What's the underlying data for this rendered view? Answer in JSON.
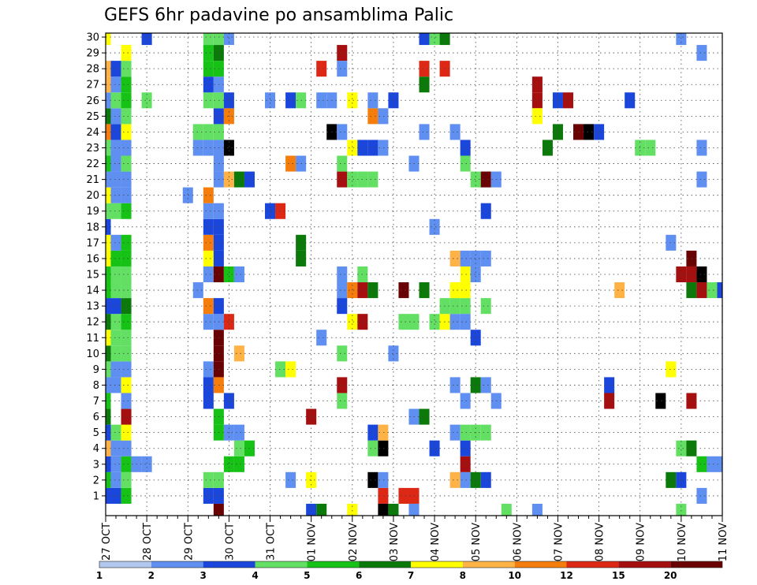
{
  "chart_data": {
    "type": "heatmap",
    "title": "GEFS 6hr padavine po ansamblima Palic",
    "xlabel": "",
    "ylabel": "",
    "y_ticks": [
      "1",
      "2",
      "3",
      "4",
      "5",
      "6",
      "7",
      "8",
      "9",
      "10",
      "11",
      "12",
      "13",
      "14",
      "15",
      "16",
      "17",
      "18",
      "19",
      "20",
      "21",
      "22",
      "23",
      "24",
      "25",
      "26",
      "27",
      "28",
      "29",
      "30"
    ],
    "ylim": [
      0,
      30
    ],
    "x_ticks": [
      "27 OCT",
      "28 OCT",
      "29 OCT",
      "30 OCT",
      "31 OCT",
      "01 NOV",
      "02 NOV",
      "03 NOV",
      "04 NOV",
      "05 NOV",
      "06 NOV",
      "07 NOV",
      "08 NOV",
      "09 NOV",
      "10 NOV",
      "11 NOV"
    ],
    "x_unit": "6-hour step from 27 OCT 00Z",
    "grid": true,
    "legend": "bottom colorbar",
    "colorbar": {
      "labels": [
        "1",
        "2",
        "3",
        "4",
        "5",
        "6",
        "7",
        "8",
        "10",
        "12",
        "15",
        "20"
      ],
      "colors": [
        "#b3c8ef",
        "#5f8ff0",
        "#1a46dc",
        "#63e063",
        "#16c216",
        "#0b7a0b",
        "#ffff00",
        "#ffb347",
        "#f47d0c",
        "#dc2814",
        "#a50f0f",
        "#690303"
      ]
    },
    "cells": [
      [
        0,
        1,
        2
      ],
      [
        0,
        2,
        4
      ],
      [
        0,
        3,
        2
      ],
      [
        0,
        4,
        7
      ],
      [
        0,
        5,
        2
      ],
      [
        0,
        6,
        5
      ],
      [
        0,
        7,
        4
      ],
      [
        0,
        8,
        1
      ],
      [
        0,
        9,
        3
      ],
      [
        0,
        10,
        5
      ],
      [
        0,
        11,
        6
      ],
      [
        0,
        12,
        5
      ],
      [
        0,
        13,
        2
      ],
      [
        0,
        14,
        4
      ],
      [
        0,
        15,
        4
      ],
      [
        0,
        16,
        6
      ],
      [
        0,
        17,
        6
      ],
      [
        0,
        18,
        2
      ],
      [
        0,
        19,
        3
      ],
      [
        0,
        20,
        6
      ],
      [
        0,
        21,
        1
      ],
      [
        0,
        22,
        4
      ],
      [
        0,
        23,
        3
      ],
      [
        0,
        24,
        8
      ],
      [
        0,
        25,
        5
      ],
      [
        0,
        26,
        1
      ],
      [
        0,
        27,
        7
      ],
      [
        0,
        28,
        7
      ],
      [
        0,
        30,
        6
      ],
      [
        1,
        1,
        2
      ],
      [
        1,
        2,
        1
      ],
      [
        1,
        3,
        1
      ],
      [
        1,
        4,
        1
      ],
      [
        1,
        5,
        3
      ],
      [
        1,
        8,
        1
      ],
      [
        1,
        9,
        1
      ],
      [
        1,
        10,
        3
      ],
      [
        1,
        11,
        3
      ],
      [
        1,
        12,
        3
      ],
      [
        1,
        13,
        2
      ],
      [
        1,
        14,
        3
      ],
      [
        1,
        15,
        3
      ],
      [
        1,
        16,
        4
      ],
      [
        1,
        17,
        1
      ],
      [
        1,
        19,
        3
      ],
      [
        1,
        20,
        1
      ],
      [
        1,
        21,
        1
      ],
      [
        1,
        22,
        1
      ],
      [
        1,
        23,
        1
      ],
      [
        1,
        24,
        2
      ],
      [
        1,
        25,
        1
      ],
      [
        1,
        26,
        3
      ],
      [
        1,
        27,
        1
      ],
      [
        1,
        28,
        2
      ],
      [
        2,
        1,
        4
      ],
      [
        2,
        2,
        3
      ],
      [
        2,
        3,
        4
      ],
      [
        2,
        4,
        1
      ],
      [
        2,
        5,
        6
      ],
      [
        2,
        6,
        10
      ],
      [
        2,
        7,
        1
      ],
      [
        2,
        8,
        6
      ],
      [
        2,
        9,
        1
      ],
      [
        2,
        10,
        3
      ],
      [
        2,
        11,
        3
      ],
      [
        2,
        12,
        4
      ],
      [
        2,
        13,
        5
      ],
      [
        2,
        14,
        3
      ],
      [
        2,
        15,
        3
      ],
      [
        2,
        16,
        4
      ],
      [
        2,
        17,
        4
      ],
      [
        2,
        19,
        4
      ],
      [
        2,
        20,
        1
      ],
      [
        2,
        21,
        1
      ],
      [
        2,
        22,
        3
      ],
      [
        2,
        23,
        1
      ],
      [
        2,
        24,
        6
      ],
      [
        2,
        25,
        3
      ],
      [
        2,
        26,
        4
      ],
      [
        2,
        27,
        4
      ],
      [
        2,
        28,
        3
      ],
      [
        2,
        29,
        6
      ],
      [
        3,
        3,
        1
      ],
      [
        4,
        3,
        1
      ],
      [
        4,
        26,
        3
      ],
      [
        4,
        30,
        2
      ],
      [
        8,
        20,
        1
      ],
      [
        9,
        24,
        3
      ],
      [
        9,
        23,
        1
      ],
      [
        9,
        14,
        1
      ],
      [
        10,
        1,
        2
      ],
      [
        10,
        2,
        3
      ],
      [
        10,
        9,
        1
      ],
      [
        10,
        8,
        2
      ],
      [
        10,
        7,
        2
      ],
      [
        10,
        12,
        1
      ],
      [
        10,
        13,
        8
      ],
      [
        10,
        15,
        1
      ],
      [
        10,
        16,
        6
      ],
      [
        10,
        17,
        8
      ],
      [
        10,
        18,
        2
      ],
      [
        10,
        19,
        1
      ],
      [
        10,
        20,
        8
      ],
      [
        10,
        23,
        1
      ],
      [
        10,
        24,
        3
      ],
      [
        10,
        26,
        3
      ],
      [
        10,
        27,
        2
      ],
      [
        10,
        30,
        3
      ],
      [
        10,
        29,
        4
      ],
      [
        10,
        28,
        4
      ],
      [
        11,
        0,
        11
      ],
      [
        11,
        1,
        2
      ],
      [
        11,
        2,
        3
      ],
      [
        11,
        5,
        4
      ],
      [
        11,
        6,
        4
      ],
      [
        11,
        8,
        8
      ],
      [
        11,
        9,
        11
      ],
      [
        11,
        10,
        11
      ],
      [
        11,
        11,
        11
      ],
      [
        11,
        12,
        1
      ],
      [
        11,
        13,
        2
      ],
      [
        11,
        15,
        11
      ],
      [
        11,
        16,
        2
      ],
      [
        11,
        17,
        2
      ],
      [
        11,
        18,
        2
      ],
      [
        11,
        19,
        1
      ],
      [
        11,
        21,
        1
      ],
      [
        11,
        22,
        1
      ],
      [
        11,
        23,
        1
      ],
      [
        11,
        24,
        3
      ],
      [
        11,
        25,
        2
      ],
      [
        11,
        26,
        3
      ],
      [
        11,
        27,
        1
      ],
      [
        11,
        28,
        4
      ],
      [
        11,
        29,
        5
      ],
      [
        11,
        30,
        3
      ],
      [
        12,
        3,
        4
      ],
      [
        12,
        5,
        1
      ],
      [
        12,
        7,
        2
      ],
      [
        12,
        12,
        9
      ],
      [
        12,
        15,
        4
      ],
      [
        12,
        21,
        7
      ],
      [
        12,
        23,
        12
      ],
      [
        12,
        25,
        8
      ],
      [
        12,
        26,
        2
      ],
      [
        12,
        30,
        1
      ],
      [
        13,
        3,
        4
      ],
      [
        13,
        4,
        3
      ],
      [
        13,
        5,
        1
      ],
      [
        13,
        10,
        7
      ],
      [
        13,
        15,
        1
      ],
      [
        13,
        21,
        5
      ],
      [
        14,
        4,
        4
      ],
      [
        14,
        21,
        2
      ],
      [
        16,
        19,
        2
      ],
      [
        16,
        26,
        1
      ],
      [
        17,
        9,
        3
      ],
      [
        17,
        19,
        9
      ],
      [
        18,
        2,
        1
      ],
      [
        18,
        9,
        6
      ],
      [
        18,
        22,
        8
      ],
      [
        18,
        26,
        2
      ],
      [
        19,
        16,
        5
      ],
      [
        19,
        17,
        5
      ],
      [
        19,
        22,
        1
      ],
      [
        19,
        26,
        3
      ],
      [
        20,
        2,
        6
      ],
      [
        20,
        6,
        10
      ],
      [
        20,
        0,
        2
      ],
      [
        21,
        0,
        5
      ],
      [
        21,
        11,
        1
      ],
      [
        21,
        26,
        1
      ],
      [
        21,
        28,
        9
      ],
      [
        22,
        24,
        12
      ],
      [
        22,
        26,
        1
      ],
      [
        23,
        8,
        10
      ],
      [
        23,
        7,
        3
      ],
      [
        23,
        10,
        3
      ],
      [
        23,
        14,
        1
      ],
      [
        23,
        15,
        1
      ],
      [
        23,
        13,
        2
      ],
      [
        23,
        24,
        1
      ],
      [
        23,
        21,
        10
      ],
      [
        23,
        29,
        10
      ],
      [
        23,
        22,
        3
      ],
      [
        23,
        28,
        1
      ],
      [
        24,
        0,
        6
      ],
      [
        24,
        12,
        6
      ],
      [
        24,
        14,
        8
      ],
      [
        24,
        23,
        6
      ],
      [
        24,
        21,
        3
      ],
      [
        24,
        26,
        6
      ],
      [
        25,
        12,
        10
      ],
      [
        25,
        14,
        10
      ],
      [
        25,
        15,
        3
      ],
      [
        25,
        21,
        3
      ],
      [
        25,
        23,
        2
      ],
      [
        26,
        2,
        12
      ],
      [
        26,
        4,
        3
      ],
      [
        26,
        5,
        2
      ],
      [
        26,
        14,
        5
      ],
      [
        26,
        21,
        3
      ],
      [
        26,
        23,
        2
      ],
      [
        26,
        25,
        8
      ],
      [
        26,
        26,
        1
      ],
      [
        27,
        1,
        9
      ],
      [
        27,
        2,
        1
      ],
      [
        27,
        4,
        12
      ],
      [
        27,
        5,
        7
      ],
      [
        27,
        23,
        1
      ],
      [
        27,
        25,
        1
      ],
      [
        27,
        0,
        12
      ],
      [
        28,
        0,
        5
      ],
      [
        28,
        10,
        1
      ],
      [
        28,
        26,
        2
      ],
      [
        29,
        14,
        11
      ],
      [
        29,
        1,
        9
      ],
      [
        29,
        12,
        3
      ],
      [
        30,
        6,
        1
      ],
      [
        30,
        12,
        3
      ],
      [
        30,
        1,
        9
      ],
      [
        30,
        0,
        1
      ],
      [
        30,
        22,
        1
      ],
      [
        31,
        6,
        5
      ],
      [
        31,
        14,
        5
      ],
      [
        31,
        27,
        5
      ],
      [
        31,
        28,
        9
      ],
      [
        31,
        24,
        1
      ],
      [
        31,
        30,
        2
      ],
      [
        32,
        4,
        2
      ],
      [
        32,
        12,
        3
      ],
      [
        32,
        18,
        1
      ],
      [
        32,
        30,
        3
      ],
      [
        33,
        12,
        6
      ],
      [
        33,
        13,
        3
      ],
      [
        33,
        28,
        9
      ],
      [
        33,
        30,
        5
      ],
      [
        34,
        2,
        7
      ],
      [
        34,
        5,
        1
      ],
      [
        34,
        8,
        1
      ],
      [
        34,
        12,
        1
      ],
      [
        34,
        13,
        3
      ],
      [
        34,
        14,
        6
      ],
      [
        34,
        16,
        7
      ],
      [
        34,
        24,
        1
      ],
      [
        35,
        2,
        1
      ],
      [
        35,
        3,
        10
      ],
      [
        35,
        4,
        2
      ],
      [
        35,
        5,
        3
      ],
      [
        35,
        7,
        1
      ],
      [
        35,
        13,
        3
      ],
      [
        35,
        14,
        6
      ],
      [
        35,
        15,
        6
      ],
      [
        35,
        16,
        1
      ],
      [
        35,
        22,
        3
      ],
      [
        35,
        23,
        2
      ],
      [
        35,
        12,
        1
      ],
      [
        36,
        2,
        5
      ],
      [
        36,
        5,
        3
      ],
      [
        36,
        8,
        5
      ],
      [
        36,
        11,
        2
      ],
      [
        36,
        15,
        1
      ],
      [
        36,
        21,
        3
      ],
      [
        36,
        16,
        1
      ],
      [
        37,
        2,
        2
      ],
      [
        37,
        5,
        3
      ],
      [
        37,
        8,
        1
      ],
      [
        37,
        13,
        3
      ],
      [
        37,
        19,
        2
      ],
      [
        37,
        16,
        1
      ],
      [
        37,
        21,
        11
      ],
      [
        38,
        21,
        1
      ],
      [
        38,
        7,
        1
      ],
      [
        39,
        0,
        3
      ],
      [
        42,
        0,
        1
      ],
      [
        42,
        26,
        10
      ],
      [
        42,
        27,
        10
      ],
      [
        42,
        25,
        6
      ],
      [
        43,
        23,
        5
      ],
      [
        44,
        24,
        5
      ],
      [
        44,
        26,
        2
      ],
      [
        45,
        26,
        10
      ],
      [
        46,
        24,
        11
      ],
      [
        47,
        24,
        12
      ],
      [
        48,
        24,
        2
      ],
      [
        49,
        7,
        10
      ],
      [
        49,
        8,
        2
      ],
      [
        50,
        14,
        7
      ],
      [
        51,
        26,
        2
      ],
      [
        52,
        23,
        3
      ],
      [
        53,
        23,
        3
      ],
      [
        54,
        7,
        12
      ],
      [
        55,
        2,
        5
      ],
      [
        55,
        9,
        6
      ],
      [
        55,
        17,
        1
      ],
      [
        56,
        0,
        3
      ],
      [
        56,
        2,
        2
      ],
      [
        56,
        4,
        3
      ],
      [
        56,
        15,
        10
      ],
      [
        56,
        30,
        1
      ],
      [
        57,
        4,
        5
      ],
      [
        57,
        14,
        5
      ],
      [
        57,
        15,
        10
      ],
      [
        57,
        16,
        11
      ],
      [
        57,
        7,
        10
      ],
      [
        58,
        1,
        1
      ],
      [
        58,
        3,
        4
      ],
      [
        58,
        14,
        10
      ],
      [
        58,
        15,
        12
      ],
      [
        58,
        29,
        1
      ],
      [
        58,
        23,
        1
      ],
      [
        58,
        21,
        1
      ],
      [
        59,
        3,
        1
      ],
      [
        59,
        14,
        3
      ],
      [
        60,
        3,
        1
      ],
      [
        60,
        14,
        2
      ]
    ]
  }
}
